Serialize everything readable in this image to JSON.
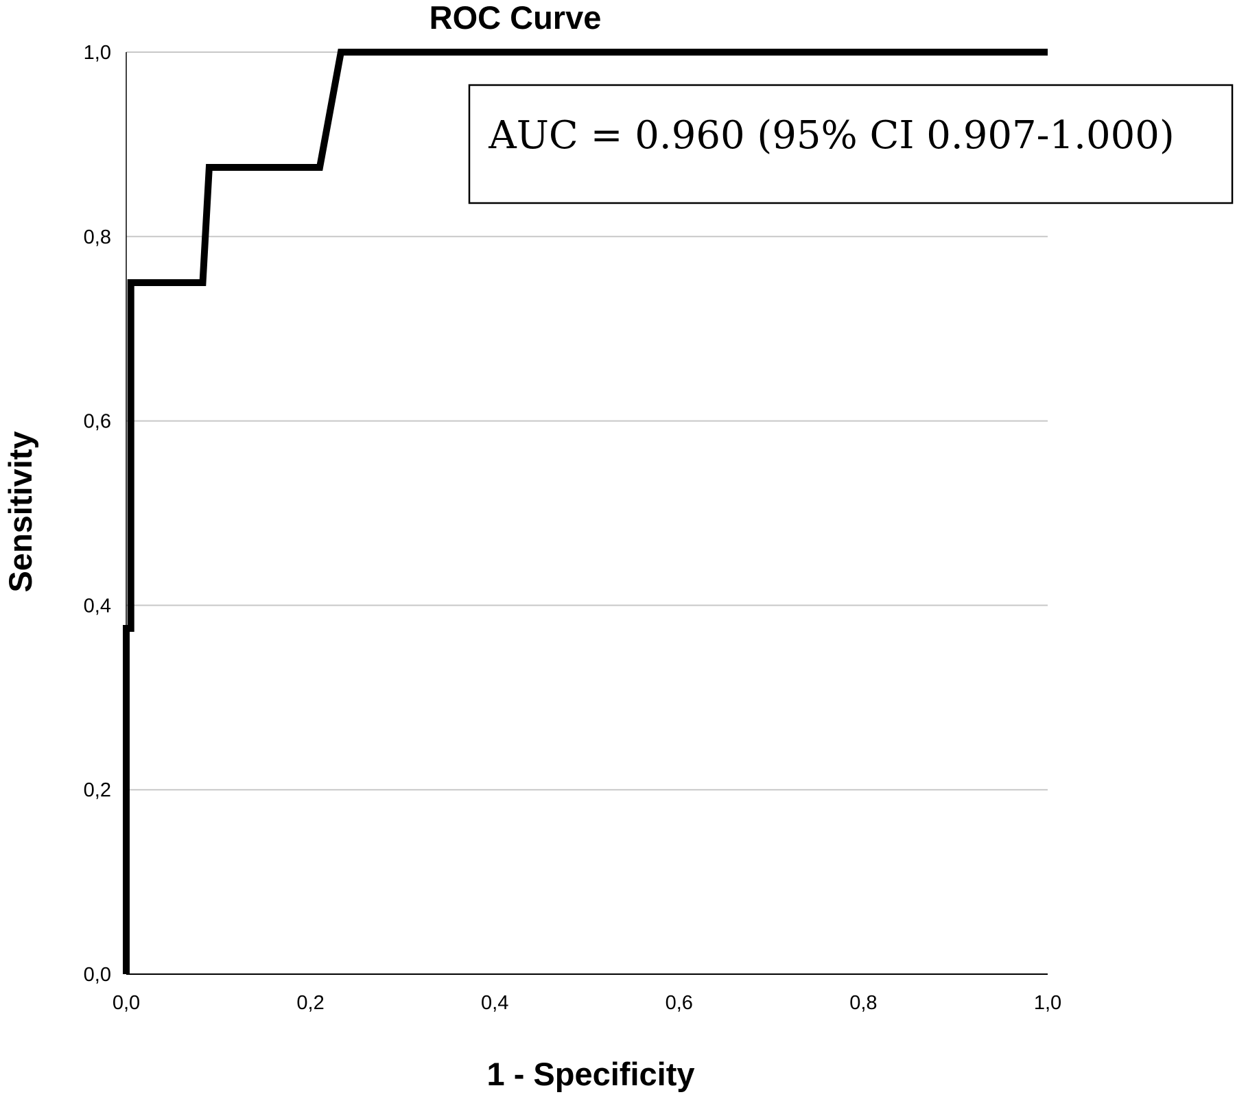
{
  "chart_data": {
    "type": "line",
    "title": "ROC Curve",
    "xlabel": "1 - Specificity",
    "ylabel": "Sensitivity",
    "xlim": [
      0,
      1
    ],
    "ylim": [
      0,
      1
    ],
    "x_ticks": [
      "0,0",
      "0,2",
      "0,4",
      "0,6",
      "0,8",
      "1,0"
    ],
    "y_ticks": [
      "0,0",
      "0,2",
      "0,4",
      "0,6",
      "0,8",
      "1,0"
    ],
    "grid": "horizontal",
    "series": [
      {
        "color": "#000000",
        "points": [
          {
            "x": 0.0,
            "y": 0.0
          },
          {
            "x": 0.0,
            "y": 0.375
          },
          {
            "x": 0.005,
            "y": 0.375
          },
          {
            "x": 0.005,
            "y": 0.75
          },
          {
            "x": 0.083,
            "y": 0.75
          },
          {
            "x": 0.09,
            "y": 0.875
          },
          {
            "x": 0.21,
            "y": 0.875
          },
          {
            "x": 0.233,
            "y": 1.0
          },
          {
            "x": 1.0,
            "y": 1.0
          }
        ]
      }
    ],
    "annotation": "AUC = 0.960 (95% CI 0.907-1.000)"
  },
  "colors": {
    "curve": "#000000",
    "grid": "#c8c8c8",
    "axis": "#000000",
    "background": "#ffffff"
  }
}
